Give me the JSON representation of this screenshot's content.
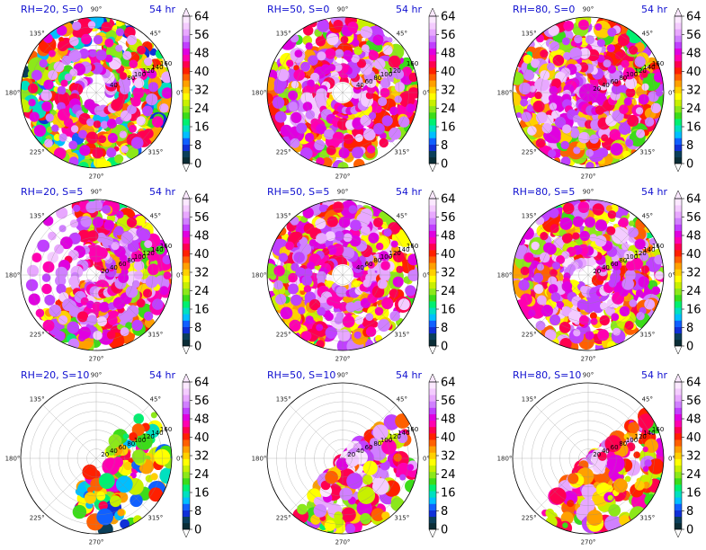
{
  "chart_data": [
    {
      "type": "polar-heatmap",
      "title_left": "RH=20, S=0",
      "title_right": "54 hr",
      "structure": "ring",
      "radial_ticks": [
        "40",
        "80",
        "100",
        "120",
        "140",
        "160"
      ]
    },
    {
      "type": "polar-heatmap",
      "title_left": "RH=50, S=0",
      "title_right": "54 hr",
      "structure": "full",
      "radial_ticks": [
        "40",
        "60",
        "80",
        "100",
        "120",
        "160"
      ]
    },
    {
      "type": "polar-heatmap",
      "title_left": "RH=80, S=0",
      "title_right": "54 hr",
      "structure": "full",
      "radial_ticks": [
        "20",
        "40",
        "60",
        "80",
        "100",
        "120",
        "140",
        "160"
      ]
    },
    {
      "type": "polar-heatmap",
      "title_left": "RH=20, S=5",
      "title_right": "54 hr",
      "structure": "shifted",
      "radial_ticks": [
        "20",
        "40",
        "60",
        "80",
        "100",
        "120",
        "140",
        "160"
      ]
    },
    {
      "type": "polar-heatmap",
      "title_left": "RH=50, S=5",
      "title_right": "54 hr",
      "structure": "full",
      "radial_ticks": [
        "40",
        "60",
        "80",
        "100",
        "120",
        "140",
        "160"
      ]
    },
    {
      "type": "polar-heatmap",
      "title_left": "RH=80, S=5",
      "title_right": "54 hr",
      "structure": "full",
      "radial_ticks": [
        "20",
        "40",
        "60",
        "80",
        "100",
        "120",
        "140",
        "160"
      ]
    },
    {
      "type": "polar-heatmap",
      "title_left": "RH=20, S=10",
      "title_right": "54 hr",
      "structure": "sparse",
      "radial_ticks": [
        "20",
        "40",
        "60",
        "80",
        "100",
        "120",
        "140",
        "160"
      ]
    },
    {
      "type": "polar-heatmap",
      "title_left": "RH=50, S=10",
      "title_right": "54 hr",
      "structure": "quadrant",
      "radial_ticks": [
        "20",
        "40",
        "60",
        "80",
        "100",
        "120",
        "140",
        "160"
      ]
    },
    {
      "type": "polar-heatmap",
      "title_left": "RH=80, S=10",
      "title_right": "54 hr",
      "structure": "quadrant",
      "radial_ticks": [
        "20",
        "40",
        "60",
        "80",
        "100",
        "120",
        "140",
        "160"
      ]
    }
  ],
  "angle_labels": [
    "90°",
    "45°",
    "0°",
    "315°",
    "270°",
    "225°",
    "180°",
    "135°"
  ],
  "colorbar": {
    "ticks": [
      "0",
      "8",
      "16",
      "24",
      "32",
      "40",
      "48",
      "56",
      "64"
    ],
    "colors": [
      "#0b2d36",
      "#0b3f5a",
      "#1030d8",
      "#1060ff",
      "#00bfff",
      "#00e0c0",
      "#00f070",
      "#3cdc1a",
      "#8ce81a",
      "#c8f000",
      "#ffff00",
      "#ffd000",
      "#ffa000",
      "#ff6000",
      "#ff2000",
      "#ff0050",
      "#ff00b0",
      "#e000e0",
      "#c040ff",
      "#d080ff",
      "#e8a8ff",
      "#f4ccff",
      "#fbe8ff"
    ]
  }
}
